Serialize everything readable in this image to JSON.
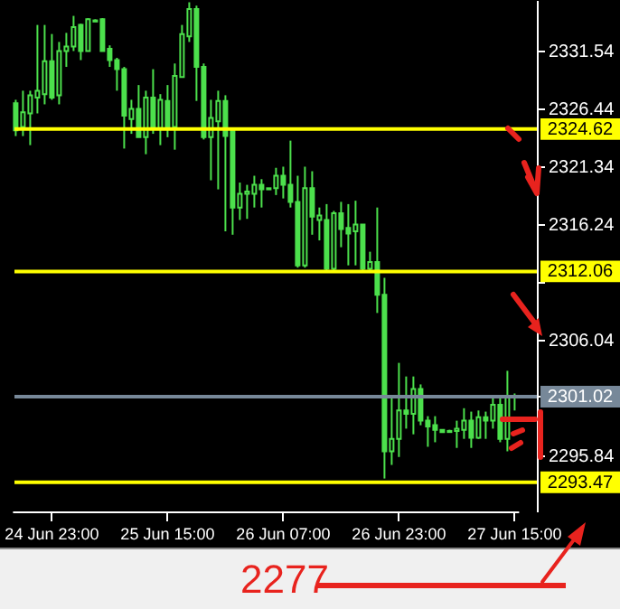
{
  "chart_data": {
    "type": "candlestick",
    "categories": [
      null,
      null,
      null,
      null,
      null,
      "24 Jun 23:00",
      null,
      null,
      null,
      null,
      null,
      null,
      null,
      null,
      null,
      null,
      null,
      null,
      null,
      null,
      null,
      "25 Jun 15:00",
      null,
      null,
      null,
      null,
      null,
      null,
      null,
      null,
      null,
      null,
      null,
      null,
      null,
      null,
      null,
      "26 Jun 07:00",
      null,
      null,
      null,
      null,
      null,
      null,
      null,
      null,
      null,
      null,
      null,
      null,
      null,
      null,
      null,
      "26 Jun 23:00",
      null,
      null,
      null,
      null,
      null,
      null,
      null,
      null,
      null,
      null,
      null,
      null,
      null,
      null,
      null,
      "27 Jun 15:00"
    ],
    "series": [
      {
        "color": "#4ce04c",
        "ohlc": [
          [
            2326.9,
            2327.2,
            2324.0,
            2324.5
          ],
          [
            2324.8,
            2328.0,
            2324.0,
            2326.1
          ],
          [
            2326.0,
            2328.0,
            2323.2,
            2327.6
          ],
          [
            2327.4,
            2333.8,
            2326.0,
            2328.0
          ],
          [
            2327.7,
            2333.8,
            2326.8,
            2330.6
          ],
          [
            2330.6,
            2333.0,
            2327.2,
            2327.4
          ],
          [
            2327.6,
            2332.3,
            2326.8,
            2331.5
          ],
          [
            2331.5,
            2333.1,
            2330.1,
            2331.9
          ],
          [
            2331.9,
            2334.6,
            2331.5,
            2333.6
          ],
          [
            2333.8,
            2333.9,
            2330.7,
            2331.5
          ],
          [
            2331.5,
            2334.4,
            2331.5,
            2334.3
          ],
          [
            2334.2,
            2334.3,
            2334.1,
            2334.1
          ],
          [
            2334.3,
            2334.4,
            2331.5,
            2331.5
          ],
          [
            2331.7,
            2332.0,
            2330.1,
            2330.7
          ],
          [
            2330.7,
            2330.9,
            2328.0,
            2329.9
          ],
          [
            2329.9,
            2330.1,
            2322.9,
            2325.8
          ],
          [
            2325.5,
            2327.2,
            2324.2,
            2326.4
          ],
          [
            2326.4,
            2328.5,
            2323.9,
            2323.9
          ],
          [
            2323.9,
            2328.0,
            2322.4,
            2327.4
          ],
          [
            2327.4,
            2329.9,
            2324.2,
            2324.7
          ],
          [
            2324.7,
            2327.7,
            2323.2,
            2327.2
          ],
          [
            2327.1,
            2328.5,
            2323.9,
            2324.7
          ],
          [
            2324.8,
            2330.4,
            2322.8,
            2329.3
          ],
          [
            2329.2,
            2333.8,
            2329.2,
            2333.0
          ],
          [
            2332.8,
            2335.8,
            2332.3,
            2335.2
          ],
          [
            2335.2,
            2335.5,
            2327.1,
            2330.1
          ],
          [
            2330.1,
            2330.4,
            2323.7,
            2323.9
          ],
          [
            2323.9,
            2327.2,
            2320.1,
            2325.6
          ],
          [
            2325.3,
            2328.0,
            2319.3,
            2327.1
          ],
          [
            2327.1,
            2327.6,
            2315.6,
            2324.0
          ],
          [
            2324.5,
            2324.7,
            2315.3,
            2317.7
          ],
          [
            2317.7,
            2319.9,
            2316.6,
            2318.9
          ],
          [
            2318.9,
            2319.7,
            2316.7,
            2319.1
          ],
          [
            2318.9,
            2320.5,
            2317.7,
            2319.7
          ],
          [
            2319.7,
            2320.2,
            2317.7,
            2319.3
          ],
          [
            2319.3,
            2319.4,
            2319.3,
            2319.4
          ],
          [
            2319.4,
            2321.2,
            2318.8,
            2320.5
          ],
          [
            2320.5,
            2321.3,
            2318.5,
            2319.7
          ],
          [
            2319.7,
            2323.6,
            2317.7,
            2318.2
          ],
          [
            2318.2,
            2320.5,
            2312.4,
            2312.6
          ],
          [
            2312.6,
            2321.3,
            2312.4,
            2319.4
          ],
          [
            2319.4,
            2320.9,
            2315.3,
            2316.9
          ],
          [
            2316.6,
            2317.7,
            2314.8,
            2317.0
          ],
          [
            2316.6,
            2318.0,
            2312.1,
            2312.3
          ],
          [
            2312.3,
            2317.4,
            2312.1,
            2317.2
          ],
          [
            2317.2,
            2318.2,
            2314.2,
            2315.8
          ],
          [
            2315.9,
            2318.0,
            2312.6,
            2315.4
          ],
          [
            2315.6,
            2318.3,
            2312.6,
            2316.2
          ],
          [
            2316.2,
            2316.2,
            2312.1,
            2312.3
          ],
          [
            2312.3,
            2313.8,
            2312.1,
            2312.9
          ],
          [
            2312.9,
            2317.7,
            2308.4,
            2310.0
          ],
          [
            2310.0,
            2311.5,
            2293.8,
            2296.2
          ],
          [
            2296.2,
            2300.9,
            2295.0,
            2297.3
          ],
          [
            2297.3,
            2304.0,
            2295.7,
            2299.8
          ],
          [
            2299.8,
            2302.8,
            2298.2,
            2299.5
          ],
          [
            2299.5,
            2302.8,
            2297.7,
            2301.7
          ],
          [
            2301.7,
            2302.1,
            2298.5,
            2298.9
          ],
          [
            2298.9,
            2299.3,
            2296.6,
            2298.4
          ],
          [
            2298.5,
            2299.3,
            2297.0,
            2298.1
          ],
          [
            2298.1,
            2298.1,
            2297.9,
            2297.9
          ],
          [
            2297.9,
            2298.1,
            2297.9,
            2298.0
          ],
          [
            2298.0,
            2298.9,
            2296.5,
            2298.2
          ],
          [
            2298.1,
            2300.0,
            2297.3,
            2298.9
          ],
          [
            2298.9,
            2299.7,
            2296.5,
            2297.4
          ],
          [
            2297.4,
            2299.8,
            2297.3,
            2299.2
          ],
          [
            2299.2,
            2299.7,
            2297.3,
            2298.9
          ],
          [
            2298.9,
            2300.9,
            2298.2,
            2300.3
          ],
          [
            2300.3,
            2300.9,
            2297.0,
            2297.3
          ],
          [
            2297.3,
            2303.3,
            2296.2,
            2301.1
          ],
          [
            2301.1,
            2301.3,
            2299.8,
            2301.0
          ]
        ]
      }
    ],
    "ylim": [
      2290.9,
      2336.0
    ],
    "yticks": [
      2295.84,
      2301.02,
      2306.04,
      {
        "value": 2311.14,
        "label": null
      },
      2316.24,
      2321.34,
      2326.44,
      2331.54
    ],
    "ref_lines": [
      {
        "axis": "y",
        "value": 2324.62,
        "label": "2324.62",
        "color": "#ffff00"
      },
      {
        "axis": "y",
        "value": 2312.06,
        "label": "2312.06",
        "color": "#ffff00"
      },
      {
        "axis": "y",
        "value": 2301.02,
        "label": "2301.02",
        "color": "#778899"
      },
      {
        "axis": "y",
        "value": 2293.47,
        "label": "2293.47",
        "color": "#ffff00"
      }
    ],
    "annotations": [
      "2277"
    ]
  }
}
